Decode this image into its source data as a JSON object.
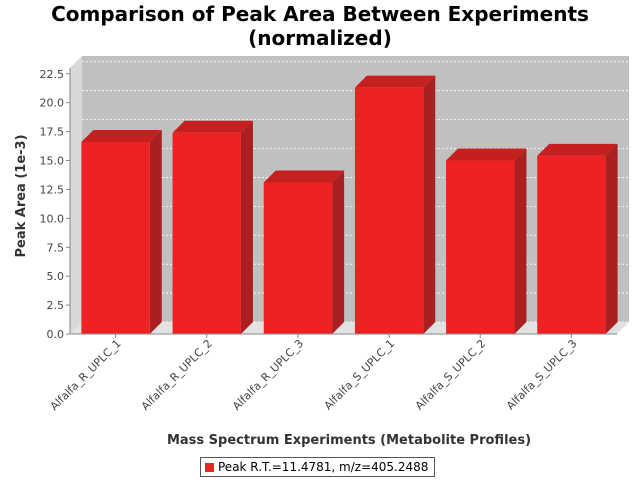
{
  "chart_data": {
    "type": "bar",
    "title_line1": "Comparison of Peak Area Between Experiments",
    "title_line2": "(normalized)",
    "xlabel": "Mass Spectrum Experiments (Metabolite Profiles)",
    "ylabel": "Peak Area (1e-3)",
    "categories": [
      "Alfalfa_R_UPLC_1",
      "Alfalfa_R_UPLC_2",
      "Alfalfa_R_UPLC_3",
      "Alfalfa_S_UPLC_1",
      "Alfalfa_S_UPLC_2",
      "Alfalfa_S_UPLC_3"
    ],
    "series": [
      {
        "name": "Peak R.T.=11.4781, m/z=405.2488",
        "values": [
          16.6,
          17.4,
          13.1,
          21.3,
          15.0,
          15.4
        ]
      }
    ],
    "ylim": [
      0,
      23.0
    ],
    "yticks": [
      "0.0",
      "2.5",
      "5.0",
      "7.5",
      "10.0",
      "12.5",
      "15.0",
      "17.5",
      "20.0",
      "22.5"
    ],
    "bar_color": "#ee2222",
    "bar_top_color": "#c42020",
    "bar_side_color": "#aa2020",
    "plot_bg": "#c0c0c0",
    "legend_position": "bottom",
    "grid": true
  }
}
